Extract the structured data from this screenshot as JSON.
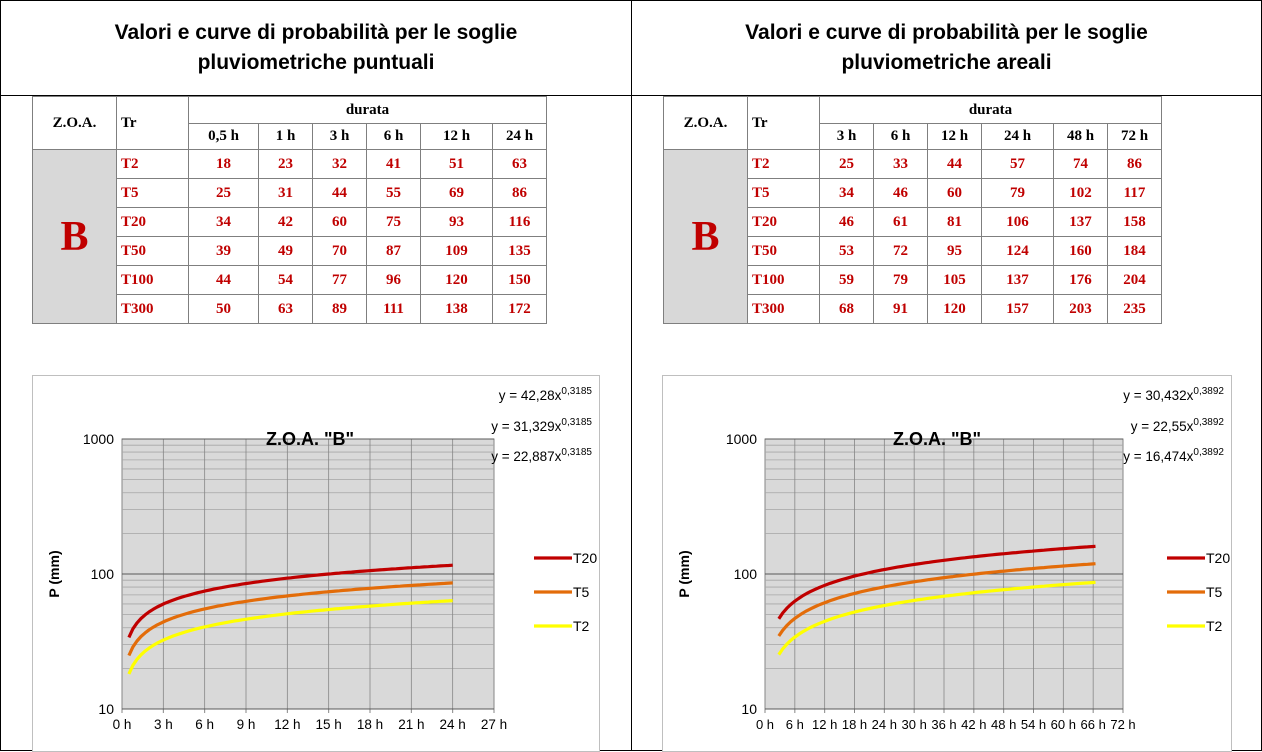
{
  "left": {
    "title": "Valori e curve di probabilità per le soglie pluviometriche puntuali",
    "table": {
      "zoa_header": "Z.O.A.",
      "tr_header": "Tr",
      "durata_header": "durata",
      "durations": [
        "0,5 h",
        "1 h",
        "3 h",
        "6 h",
        "12 h",
        "24 h"
      ],
      "zone": "B",
      "rows": [
        {
          "tr": "T2",
          "values": [
            "18",
            "23",
            "32",
            "41",
            "51",
            "63"
          ]
        },
        {
          "tr": "T5",
          "values": [
            "25",
            "31",
            "44",
            "55",
            "69",
            "86"
          ]
        },
        {
          "tr": "T20",
          "values": [
            "34",
            "42",
            "60",
            "75",
            "93",
            "116"
          ]
        },
        {
          "tr": "T50",
          "values": [
            "39",
            "49",
            "70",
            "87",
            "109",
            "135"
          ]
        },
        {
          "tr": "T100",
          "values": [
            "44",
            "54",
            "77",
            "96",
            "120",
            "150"
          ]
        },
        {
          "tr": "T300",
          "values": [
            "50",
            "63",
            "89",
            "111",
            "138",
            "172"
          ]
        }
      ]
    },
    "chart": {
      "title": "Z.O.A. \"B\"",
      "ylabel": "P (mm)",
      "equations": [
        {
          "base": "y = 42,28x",
          "exp": "0,3185"
        },
        {
          "base": "y = 31,329x",
          "exp": "0,3185"
        },
        {
          "base": "y = 22,887x",
          "exp": "0,3185"
        }
      ],
      "legend": [
        "T20",
        "T5",
        "T2"
      ]
    }
  },
  "right": {
    "title": "Valori e curve di probabilità per le soglie pluviometriche areali",
    "table": {
      "zoa_header": "Z.O.A.",
      "tr_header": "Tr",
      "durata_header": "durata",
      "durations": [
        "3 h",
        "6 h",
        "12 h",
        "24 h",
        "48 h",
        "72 h"
      ],
      "zone": "B",
      "rows": [
        {
          "tr": "T2",
          "values": [
            "25",
            "33",
            "44",
            "57",
            "74",
            "86"
          ]
        },
        {
          "tr": "T5",
          "values": [
            "34",
            "46",
            "60",
            "79",
            "102",
            "117"
          ]
        },
        {
          "tr": "T20",
          "values": [
            "46",
            "61",
            "81",
            "106",
            "137",
            "158"
          ]
        },
        {
          "tr": "T50",
          "values": [
            "53",
            "72",
            "95",
            "124",
            "160",
            "184"
          ]
        },
        {
          "tr": "T100",
          "values": [
            "59",
            "79",
            "105",
            "137",
            "176",
            "204"
          ]
        },
        {
          "tr": "T300",
          "values": [
            "68",
            "91",
            "120",
            "157",
            "203",
            "235"
          ]
        }
      ]
    },
    "chart": {
      "title": "Z.O.A. \"B\"",
      "ylabel": "P (mm)",
      "equations": [
        {
          "base": "y = 30,432x",
          "exp": "0,3892"
        },
        {
          "base": "y = 22,55x",
          "exp": "0,3892"
        },
        {
          "base": "y = 16,474x",
          "exp": "0,3892"
        }
      ],
      "legend": [
        "T20",
        "T5",
        "T2"
      ]
    }
  },
  "chart_data": [
    {
      "type": "line",
      "title": "Z.O.A. \"B\"",
      "xlabel": "",
      "ylabel": "P (mm)",
      "yscale": "log",
      "ylim": [
        10,
        1000
      ],
      "xlim": [
        0,
        27
      ],
      "x_ticks": [
        "0 h",
        "3 h",
        "6 h",
        "9 h",
        "12 h",
        "15 h",
        "18 h",
        "21 h",
        "24 h",
        "27 h"
      ],
      "y_ticks": [
        "10",
        "100",
        "1000"
      ],
      "grid": true,
      "legend_position": "right",
      "series": [
        {
          "name": "T20",
          "color": "#c00000",
          "x": [
            0.5,
            1,
            3,
            6,
            12,
            24
          ],
          "y": [
            34,
            42,
            60,
            75,
            93,
            116
          ]
        },
        {
          "name": "T5",
          "color": "#e36c09",
          "x": [
            0.5,
            1,
            3,
            6,
            12,
            24
          ],
          "y": [
            25,
            31,
            44,
            55,
            69,
            86
          ]
        },
        {
          "name": "T2",
          "color": "#ffff00",
          "x": [
            0.5,
            1,
            3,
            6,
            12,
            24
          ],
          "y": [
            18,
            23,
            32,
            41,
            51,
            63
          ]
        }
      ]
    },
    {
      "type": "line",
      "title": "Z.O.A. \"B\"",
      "xlabel": "",
      "ylabel": "P (mm)",
      "yscale": "log",
      "ylim": [
        10,
        1000
      ],
      "xlim": [
        0,
        78
      ],
      "x_ticks": [
        "0 h",
        "6 h",
        "12 h",
        "18 h",
        "24 h",
        "30 h",
        "36 h",
        "42 h",
        "48 h",
        "54 h",
        "60 h",
        "66 h",
        "72 h"
      ],
      "y_ticks": [
        "10",
        "100",
        "1000"
      ],
      "grid": true,
      "legend_position": "right",
      "series": [
        {
          "name": "T20",
          "color": "#c00000",
          "x": [
            3,
            6,
            12,
            24,
            48,
            72
          ],
          "y": [
            46,
            61,
            81,
            106,
            137,
            158
          ]
        },
        {
          "name": "T5",
          "color": "#e36c09",
          "x": [
            3,
            6,
            12,
            24,
            48,
            72
          ],
          "y": [
            34,
            46,
            60,
            79,
            102,
            117
          ]
        },
        {
          "name": "T2",
          "color": "#ffff00",
          "x": [
            3,
            6,
            12,
            24,
            48,
            72
          ],
          "y": [
            25,
            33,
            44,
            57,
            74,
            86
          ]
        }
      ]
    }
  ]
}
